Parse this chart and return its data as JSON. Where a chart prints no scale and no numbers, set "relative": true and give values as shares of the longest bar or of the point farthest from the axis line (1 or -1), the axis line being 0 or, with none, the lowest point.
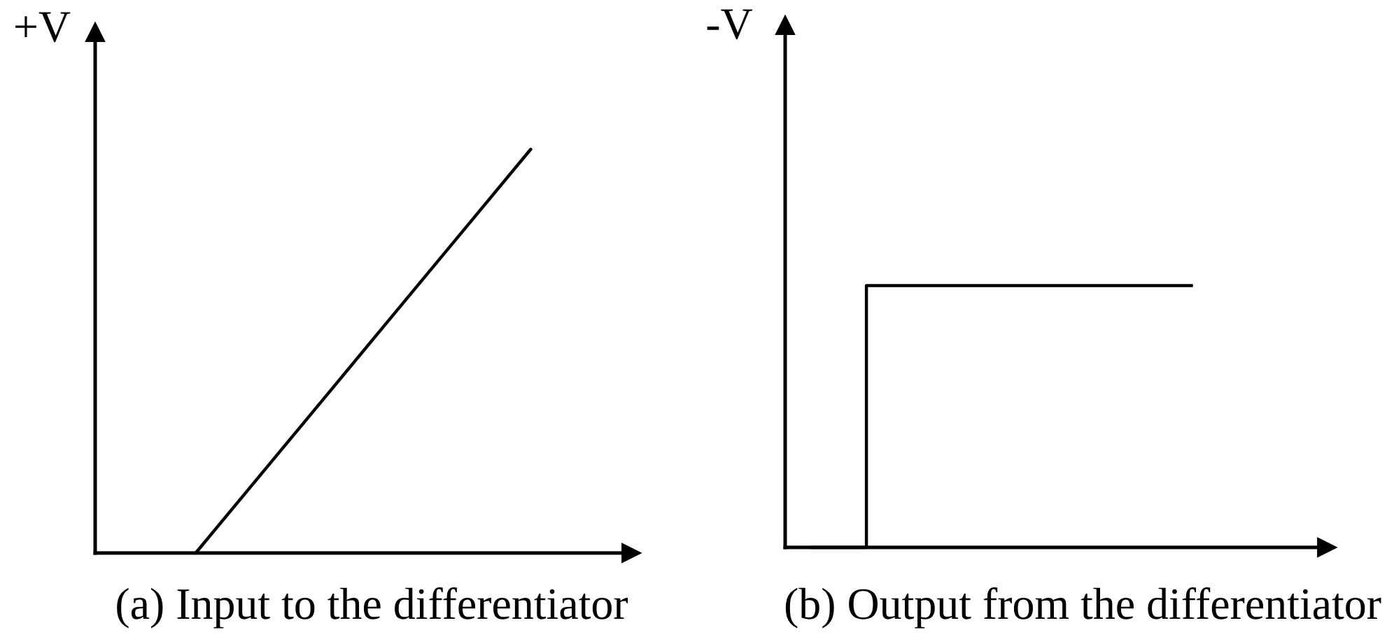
{
  "chart_data": [
    {
      "type": "line",
      "title": "(a) Input to the differentiator",
      "ylabel": "+V",
      "relative": true,
      "tick_labels": false,
      "color": "#000000",
      "categories": [
        null,
        null,
        null,
        null,
        null,
        null,
        null,
        null
      ],
      "values": [
        null,
        0,
        0.2,
        0.4,
        0.6,
        0.8,
        1,
        null
      ]
    },
    {
      "type": "step",
      "title": "(b) Output from the differentiator",
      "ylabel": "-V",
      "relative": true,
      "tick_labels": false,
      "color": "#000000",
      "categories": [
        null,
        null,
        null,
        null,
        null,
        null,
        null,
        null,
        null,
        null
      ],
      "values": [
        0,
        1,
        1,
        1,
        1,
        1,
        1,
        1,
        null,
        null
      ]
    }
  ]
}
